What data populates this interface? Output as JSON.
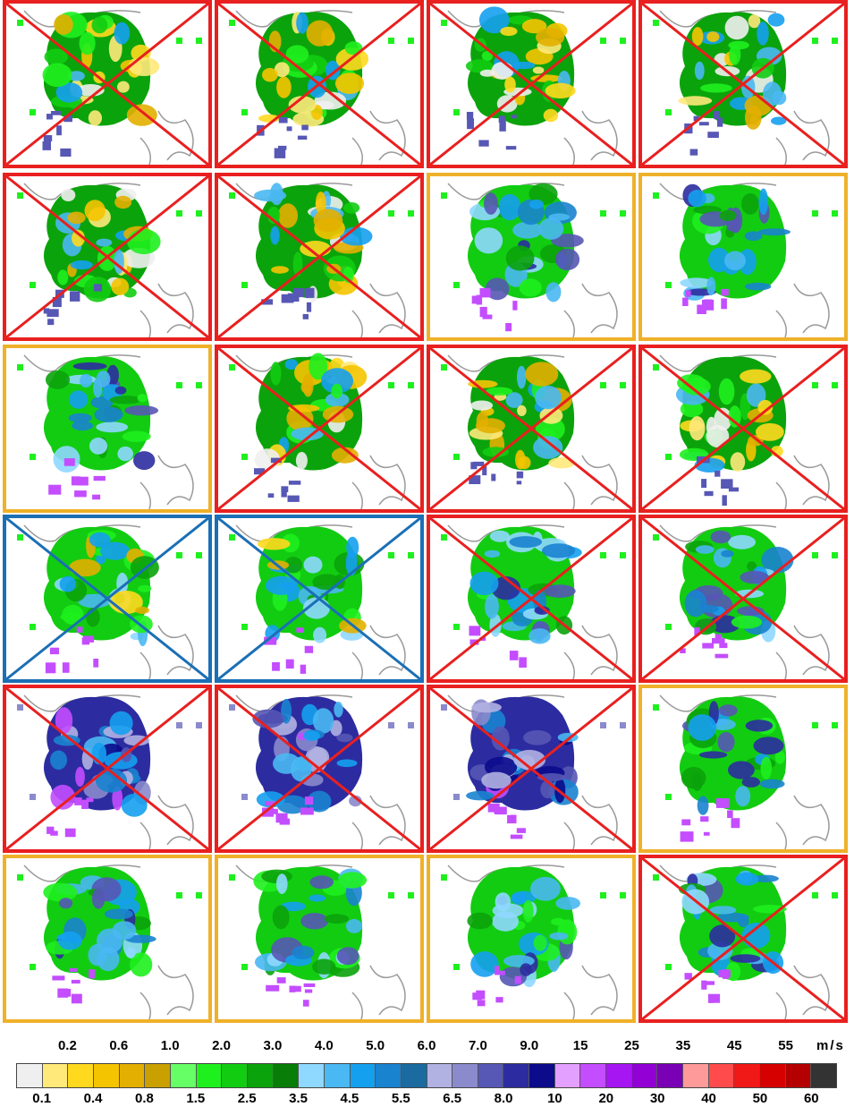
{
  "panels": [
    {
      "border": "red",
      "cross": true,
      "scheme": "light"
    },
    {
      "border": "red",
      "cross": true,
      "scheme": "light"
    },
    {
      "border": "red",
      "cross": true,
      "scheme": "light"
    },
    {
      "border": "red",
      "cross": true,
      "scheme": "light"
    },
    {
      "border": "red",
      "cross": true,
      "scheme": "light"
    },
    {
      "border": "red",
      "cross": true,
      "scheme": "light"
    },
    {
      "border": "orange",
      "cross": false,
      "scheme": "medium"
    },
    {
      "border": "orange",
      "cross": false,
      "scheme": "medium"
    },
    {
      "border": "orange",
      "cross": false,
      "scheme": "medium"
    },
    {
      "border": "red",
      "cross": true,
      "scheme": "light"
    },
    {
      "border": "red",
      "cross": true,
      "scheme": "light"
    },
    {
      "border": "red",
      "cross": true,
      "scheme": "light"
    },
    {
      "border": "blue",
      "cross": true,
      "scheme": "mixed"
    },
    {
      "border": "blue",
      "cross": true,
      "scheme": "mixed"
    },
    {
      "border": "red",
      "cross": true,
      "scheme": "medium"
    },
    {
      "border": "red",
      "cross": true,
      "scheme": "medium"
    },
    {
      "border": "red",
      "cross": true,
      "scheme": "strong"
    },
    {
      "border": "red",
      "cross": true,
      "scheme": "strong"
    },
    {
      "border": "red",
      "cross": true,
      "scheme": "strong"
    },
    {
      "border": "orange",
      "cross": false,
      "scheme": "medium"
    },
    {
      "border": "orange",
      "cross": false,
      "scheme": "medium"
    },
    {
      "border": "orange",
      "cross": false,
      "scheme": "medium"
    },
    {
      "border": "orange",
      "cross": false,
      "scheme": "medium"
    },
    {
      "border": "red",
      "cross": true,
      "scheme": "medium"
    }
  ],
  "border_colors": {
    "red": "#e8201f",
    "orange": "#efb12a",
    "blue": "#1b6fb5"
  },
  "legend": {
    "unit": "m/s",
    "top_labels": [
      "0.2",
      "0.6",
      "1.0",
      "2.0",
      "3.0",
      "4.0",
      "5.0",
      "6.0",
      "7.0",
      "9.0",
      "15",
      "25",
      "35",
      "45",
      "55"
    ],
    "bottom_labels": [
      "0.1",
      "0.4",
      "0.8",
      "1.5",
      "2.5",
      "3.5",
      "4.5",
      "5.5",
      "6.5",
      "8.0",
      "10",
      "20",
      "30",
      "40",
      "50",
      "60"
    ],
    "colors": [
      "#efefef",
      "#ffe97a",
      "#ffd91e",
      "#f5c400",
      "#e3af00",
      "#c9a000",
      "#66ff66",
      "#1ef01e",
      "#12cc12",
      "#0ba30b",
      "#087d08",
      "#8fd8ff",
      "#4ab8f2",
      "#15a0ef",
      "#1983cf",
      "#1b6ba0",
      "#b1b1e2",
      "#8a8acc",
      "#5757b5",
      "#2c2ca0",
      "#0b0b8c",
      "#e4a0ff",
      "#c34dff",
      "#a516f2",
      "#9200d6",
      "#7a00b6",
      "#ff9a9a",
      "#ff4b4b",
      "#f11818",
      "#d60000",
      "#b40000",
      "#333333"
    ]
  }
}
